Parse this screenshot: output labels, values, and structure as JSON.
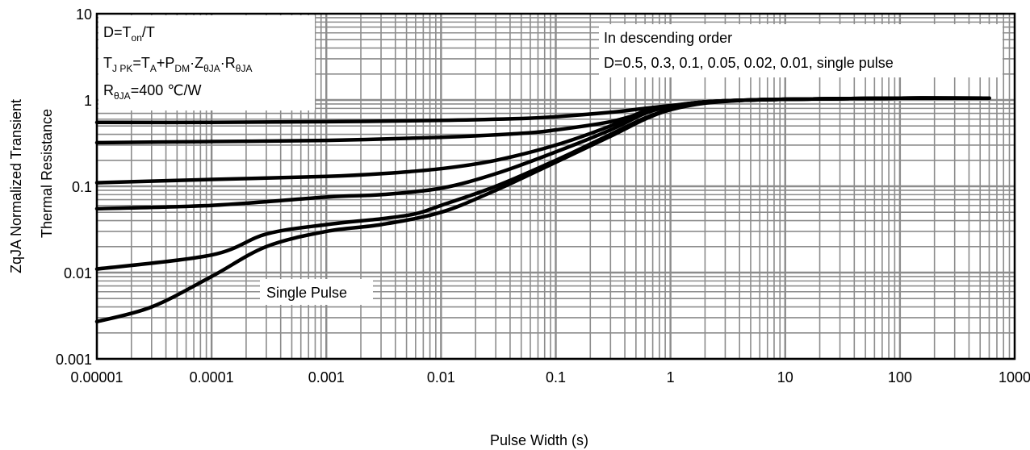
{
  "chart_data": {
    "type": "line",
    "title": "",
    "xlabel": "Pulse Width (s)",
    "ylabel_line1": "ZqJA Normalized Transient",
    "ylabel_line2": "Thermal Resistance",
    "x_scale": "log",
    "y_scale": "log",
    "xlim": [
      1e-05,
      1000
    ],
    "ylim": [
      0.001,
      10
    ],
    "x_ticks": [
      "0.00001",
      "0.0001",
      "0.001",
      "0.01",
      "0.1",
      "1",
      "10",
      "100",
      "1000"
    ],
    "y_ticks": [
      "0.001",
      "0.01",
      "0.1",
      "1",
      "10"
    ],
    "grid": true,
    "annotations": {
      "order_title": "In descending order",
      "order_list": "D=0.5, 0.3, 0.1, 0.05, 0.02, 0.01, single pulse",
      "single_pulse": "Single Pulse",
      "eq1": {
        "a": "D=T",
        "a_sub": "on",
        "b": "/T"
      },
      "eq2": {
        "a": "T",
        "a_sub": "J PK",
        "b": "=T",
        "b_sub": "A",
        "c": "+P",
        "c_sub": "DM",
        "d": "·Z",
        "d_sub": "θJA",
        "e": "·R",
        "e_sub": "θJA"
      },
      "eq3": {
        "a": "R",
        "a_sub": "θJA",
        "b": "=400 ℃/W"
      }
    },
    "series": [
      {
        "x": [
          1e-05,
          0.0001,
          0.001,
          0.01,
          0.05,
          0.1,
          0.3,
          0.6,
          1,
          2,
          5,
          10,
          100,
          600
        ],
        "y": [
          0.55,
          0.55,
          0.56,
          0.58,
          0.61,
          0.64,
          0.72,
          0.8,
          0.86,
          0.95,
          1.0,
          1.02,
          1.05,
          1.05
        ]
      },
      {
        "x": [
          1e-05,
          0.0001,
          0.001,
          0.01,
          0.05,
          0.1,
          0.3,
          0.6,
          1,
          2,
          5,
          10,
          100,
          600
        ],
        "y": [
          0.32,
          0.33,
          0.34,
          0.37,
          0.41,
          0.45,
          0.56,
          0.72,
          0.84,
          0.95,
          1.0,
          1.02,
          1.05,
          1.05
        ]
      },
      {
        "x": [
          1e-05,
          0.0001,
          0.001,
          0.003,
          0.01,
          0.03,
          0.1,
          0.3,
          0.6,
          1,
          2,
          5,
          10,
          100,
          600
        ],
        "y": [
          0.11,
          0.12,
          0.13,
          0.14,
          0.16,
          0.2,
          0.3,
          0.5,
          0.75,
          0.85,
          0.95,
          1.0,
          1.02,
          1.05,
          1.05
        ]
      },
      {
        "x": [
          1e-05,
          0.0001,
          0.001,
          0.003,
          0.01,
          0.03,
          0.1,
          0.3,
          0.6,
          1,
          2,
          5,
          10,
          100,
          600
        ],
        "y": [
          0.055,
          0.06,
          0.075,
          0.08,
          0.095,
          0.14,
          0.25,
          0.45,
          0.7,
          0.84,
          0.95,
          1.0,
          1.02,
          1.05,
          1.05
        ]
      },
      {
        "x": [
          1e-05,
          0.0001,
          0.0003,
          0.001,
          0.003,
          0.006,
          0.01,
          0.03,
          0.1,
          0.3,
          0.6,
          1,
          2,
          5,
          10,
          100,
          600
        ],
        "y": [
          0.011,
          0.016,
          0.028,
          0.036,
          0.042,
          0.048,
          0.06,
          0.1,
          0.2,
          0.4,
          0.62,
          0.78,
          0.93,
          1.0,
          1.02,
          1.05,
          1.05
        ]
      },
      {
        "x": [
          1e-05,
          3e-05,
          0.0001,
          0.0003,
          0.001,
          0.003,
          0.01,
          0.03,
          0.1,
          0.3,
          0.6,
          1,
          2,
          5,
          10,
          100,
          600
        ],
        "y": [
          0.0027,
          0.004,
          0.009,
          0.02,
          0.03,
          0.036,
          0.05,
          0.09,
          0.19,
          0.38,
          0.6,
          0.77,
          0.92,
          1.0,
          1.02,
          1.05,
          1.05
        ]
      }
    ]
  }
}
